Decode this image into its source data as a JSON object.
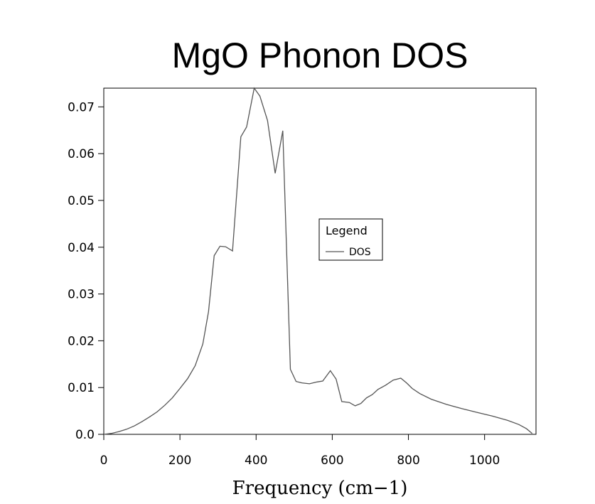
{
  "chart_data": {
    "type": "line",
    "title": "MgO Phonon DOS",
    "xlabel": "Frequency (cm−1)",
    "ylabel": "",
    "xlim": [
      0,
      1135
    ],
    "ylim": [
      0,
      0.074
    ],
    "x_ticks": [
      0,
      200,
      400,
      600,
      800,
      1000
    ],
    "x_tick_labels": [
      "0",
      "200",
      "400",
      "600",
      "800",
      "1000"
    ],
    "y_ticks": [
      0.0,
      0.01,
      0.02,
      0.03,
      0.04,
      0.05,
      0.06,
      0.07
    ],
    "y_tick_labels": [
      "0.0",
      "0.01",
      "0.02",
      "0.03",
      "0.04",
      "0.05",
      "0.06",
      "0.07"
    ],
    "grid": false,
    "legend": {
      "title": "Legend",
      "position": "center-right"
    },
    "series": [
      {
        "name": "DOS",
        "color": "#555555",
        "x": [
          0,
          20,
          40,
          60,
          80,
          100,
          120,
          140,
          160,
          180,
          200,
          220,
          240,
          260,
          275,
          290,
          305,
          320,
          338,
          360,
          375,
          395,
          410,
          430,
          450,
          470,
          490,
          505,
          520,
          540,
          560,
          575,
          595,
          610,
          625,
          645,
          660,
          675,
          690,
          705,
          720,
          740,
          760,
          780,
          795,
          810,
          830,
          860,
          900,
          940,
          980,
          1020,
          1060,
          1090,
          1110,
          1125
        ],
        "y": [
          0.0,
          0.0002,
          0.0006,
          0.0011,
          0.0018,
          0.0027,
          0.0037,
          0.0048,
          0.0062,
          0.0078,
          0.0098,
          0.0119,
          0.0147,
          0.0193,
          0.0262,
          0.0382,
          0.0402,
          0.0401,
          0.0392,
          0.0636,
          0.0657,
          0.074,
          0.0723,
          0.0671,
          0.0558,
          0.0649,
          0.0139,
          0.0113,
          0.011,
          0.0108,
          0.0112,
          0.0114,
          0.0136,
          0.0118,
          0.007,
          0.0068,
          0.0061,
          0.0066,
          0.0078,
          0.0085,
          0.0096,
          0.0105,
          0.0116,
          0.012,
          0.011,
          0.0098,
          0.0087,
          0.0075,
          0.0064,
          0.0055,
          0.0047,
          0.0039,
          0.003,
          0.0021,
          0.0012,
          0.0002
        ]
      }
    ]
  }
}
